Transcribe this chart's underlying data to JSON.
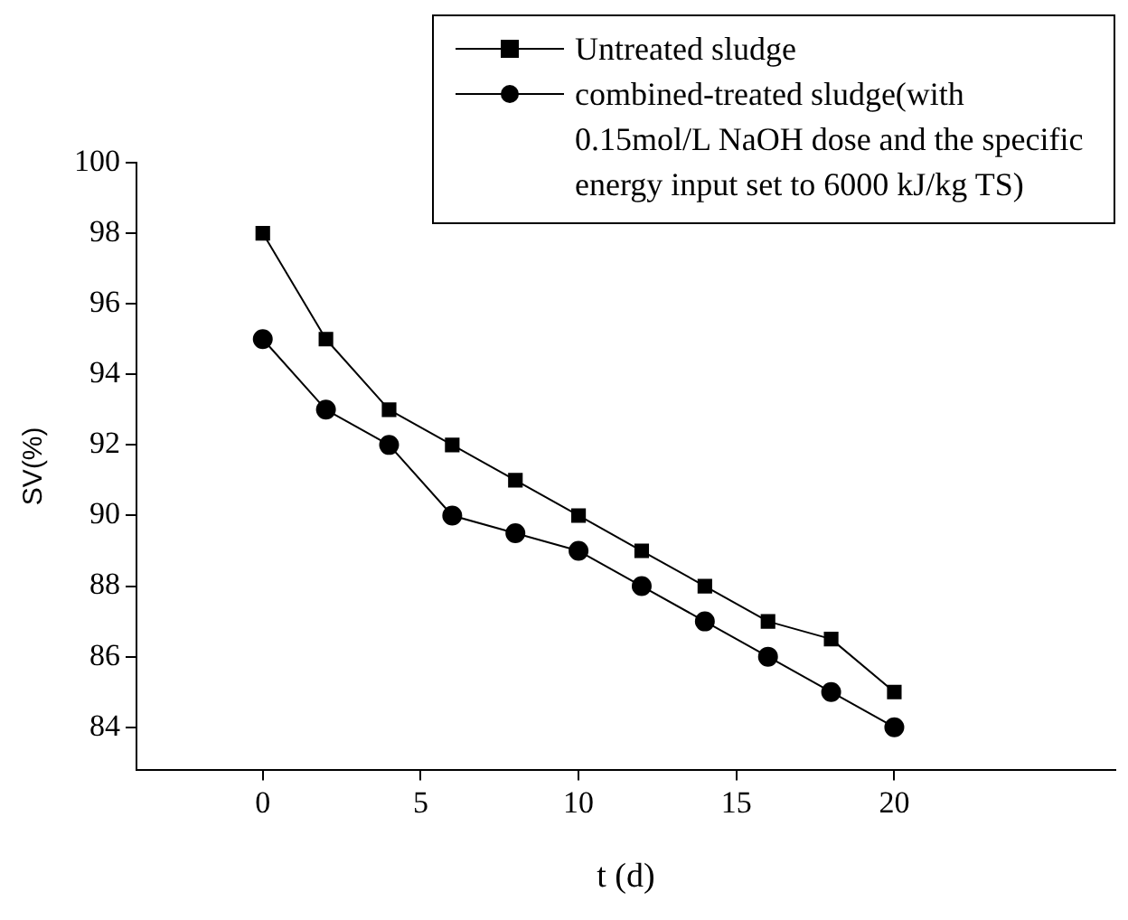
{
  "chart_data": {
    "type": "line",
    "xlabel": "t (d)",
    "ylabel": "SV(%)",
    "xlim": [
      -4,
      27
    ],
    "xticks": [
      0,
      5,
      10,
      15,
      20
    ],
    "ylim": [
      82.8,
      100
    ],
    "yticks": [
      84,
      86,
      88,
      90,
      92,
      94,
      96,
      98,
      100
    ],
    "grid": false,
    "legend": "top right",
    "line_style": "solid",
    "x": [
      0,
      2,
      4,
      6,
      8,
      10,
      12,
      14,
      16,
      18,
      20
    ],
    "series": [
      {
        "name": "Untreated sludge",
        "color": "#000000",
        "marker": "square",
        "values": [
          98,
          95,
          93,
          92,
          91,
          90,
          89,
          88,
          87,
          86.5,
          85
        ]
      },
      {
        "name": "combined-treated sludge(with 0.15mol/L NaOH dose and the specific energy input set to 6000 kJ/kg TS)",
        "color": "#000000",
        "marker": "circle",
        "values": [
          95,
          93,
          92,
          90,
          89.5,
          89,
          88,
          87,
          86,
          85,
          84
        ]
      }
    ]
  }
}
